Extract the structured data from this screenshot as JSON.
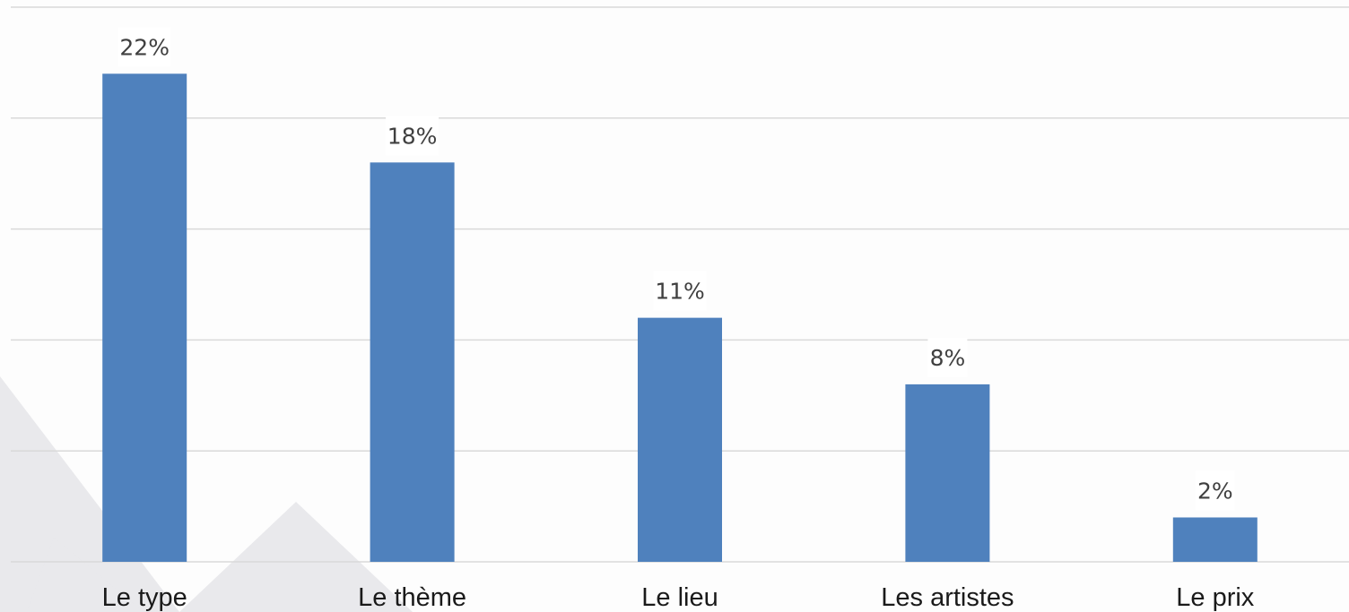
{
  "chart_data": {
    "type": "bar",
    "categories": [
      "Le type",
      "Le thème",
      "Le lieu",
      "Les artistes",
      "Le prix"
    ],
    "values": [
      22,
      18,
      11,
      8,
      2
    ],
    "data_labels": [
      "22%",
      "18%",
      "11%",
      "8%",
      "2%"
    ],
    "unit": "%",
    "ylim": [
      0,
      25
    ],
    "y_gridlines": [
      0,
      5,
      10,
      15,
      20,
      25
    ],
    "grid": true,
    "legend": "none",
    "colors": {
      "bar": "#4f81bd",
      "gridline": "#d9d9d9",
      "label_background": "#ffffff"
    }
  }
}
